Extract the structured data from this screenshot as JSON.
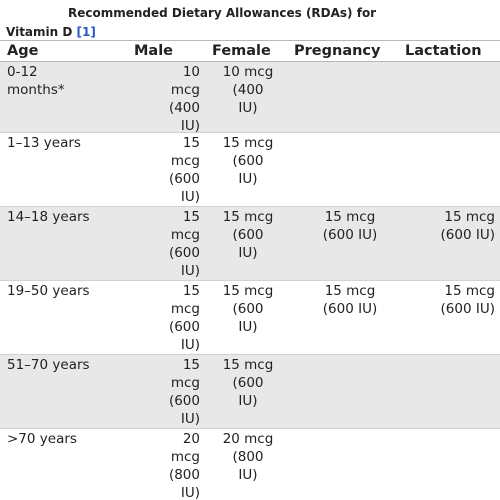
{
  "caption": {
    "title": "Recommended Dietary Allowances (RDAs) for",
    "subject": "Vitamin D",
    "reference": "[1]"
  },
  "table": {
    "headers": [
      "Age",
      "Male",
      "Female",
      "Pregnancy",
      "Lactation"
    ],
    "rows": [
      {
        "age": [
          "0-12",
          "months*"
        ],
        "male": [
          "10",
          "mcg",
          "(400",
          "IU)"
        ],
        "female": [
          "10 mcg",
          "(400",
          "IU)"
        ],
        "pregnancy": [],
        "lactation": []
      },
      {
        "age": [
          "1–13 years"
        ],
        "male": [
          "15",
          "mcg",
          "(600",
          "IU)"
        ],
        "female": [
          "15 mcg",
          "(600",
          "IU)"
        ],
        "pregnancy": [],
        "lactation": []
      },
      {
        "age": [
          "14–18 years"
        ],
        "male": [
          "15",
          "mcg",
          "(600",
          "IU)"
        ],
        "female": [
          "15 mcg",
          "(600",
          "IU)"
        ],
        "pregnancy": [
          "15 mcg",
          "(600 IU)"
        ],
        "lactation": [
          "15 mcg",
          "(600 IU)"
        ]
      },
      {
        "age": [
          "19–50 years"
        ],
        "male": [
          "15",
          "mcg",
          "(600",
          "IU)"
        ],
        "female": [
          "15 mcg",
          "(600",
          "IU)"
        ],
        "pregnancy": [
          "15 mcg",
          "(600 IU)"
        ],
        "lactation": [
          "15 mcg",
          "(600 IU)"
        ]
      },
      {
        "age": [
          "51–70 years"
        ],
        "male": [
          "15",
          "mcg",
          "(600",
          "IU)"
        ],
        "female": [
          "15 mcg",
          "(600",
          "IU)"
        ],
        "pregnancy": [],
        "lactation": []
      },
      {
        "age": [
          ">70 years"
        ],
        "male": [
          "20",
          "mcg",
          "(800",
          "IU)"
        ],
        "female": [
          "20 mcg",
          "(800",
          "IU)"
        ],
        "pregnancy": [],
        "lactation": []
      }
    ]
  },
  "colors": {
    "shaded_row": "#e8e8e8",
    "text": "#222222",
    "link": "#2a56c6"
  }
}
